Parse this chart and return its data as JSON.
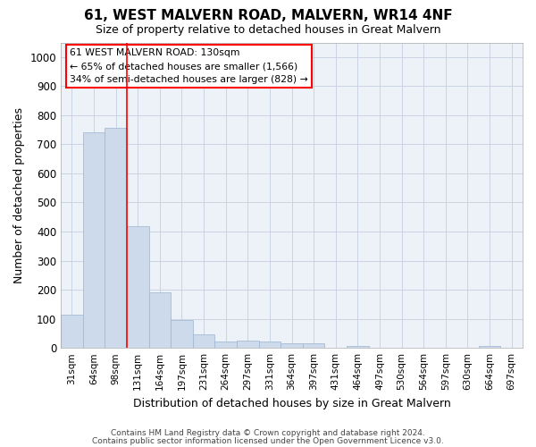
{
  "title1": "61, WEST MALVERN ROAD, MALVERN, WR14 4NF",
  "title2": "Size of property relative to detached houses in Great Malvern",
  "xlabel": "Distribution of detached houses by size in Great Malvern",
  "ylabel": "Number of detached properties",
  "categories": [
    "31sqm",
    "64sqm",
    "98sqm",
    "131sqm",
    "164sqm",
    "197sqm",
    "231sqm",
    "264sqm",
    "297sqm",
    "331sqm",
    "364sqm",
    "397sqm",
    "431sqm",
    "464sqm",
    "497sqm",
    "530sqm",
    "564sqm",
    "597sqm",
    "630sqm",
    "664sqm",
    "697sqm"
  ],
  "values": [
    113,
    742,
    755,
    420,
    190,
    97,
    47,
    22,
    25,
    22,
    15,
    15,
    0,
    8,
    0,
    0,
    0,
    0,
    0,
    8,
    0
  ],
  "bar_color": "#ccdaec",
  "bar_edge_color": "#9ab5d0",
  "grid_color": "#c5cfe0",
  "background_color": "#edf1f8",
  "red_line_x": 2.5,
  "annotation_title": "61 WEST MALVERN ROAD: 130sqm",
  "annotation_line1": "← 65% of detached houses are smaller (1,566)",
  "annotation_line2": "34% of semi-detached houses are larger (828) →",
  "ylim": [
    0,
    1050
  ],
  "yticks": [
    0,
    100,
    200,
    300,
    400,
    500,
    600,
    700,
    800,
    900,
    1000
  ],
  "footnote1": "Contains HM Land Registry data © Crown copyright and database right 2024.",
  "footnote2": "Contains public sector information licensed under the Open Government Licence v3.0."
}
